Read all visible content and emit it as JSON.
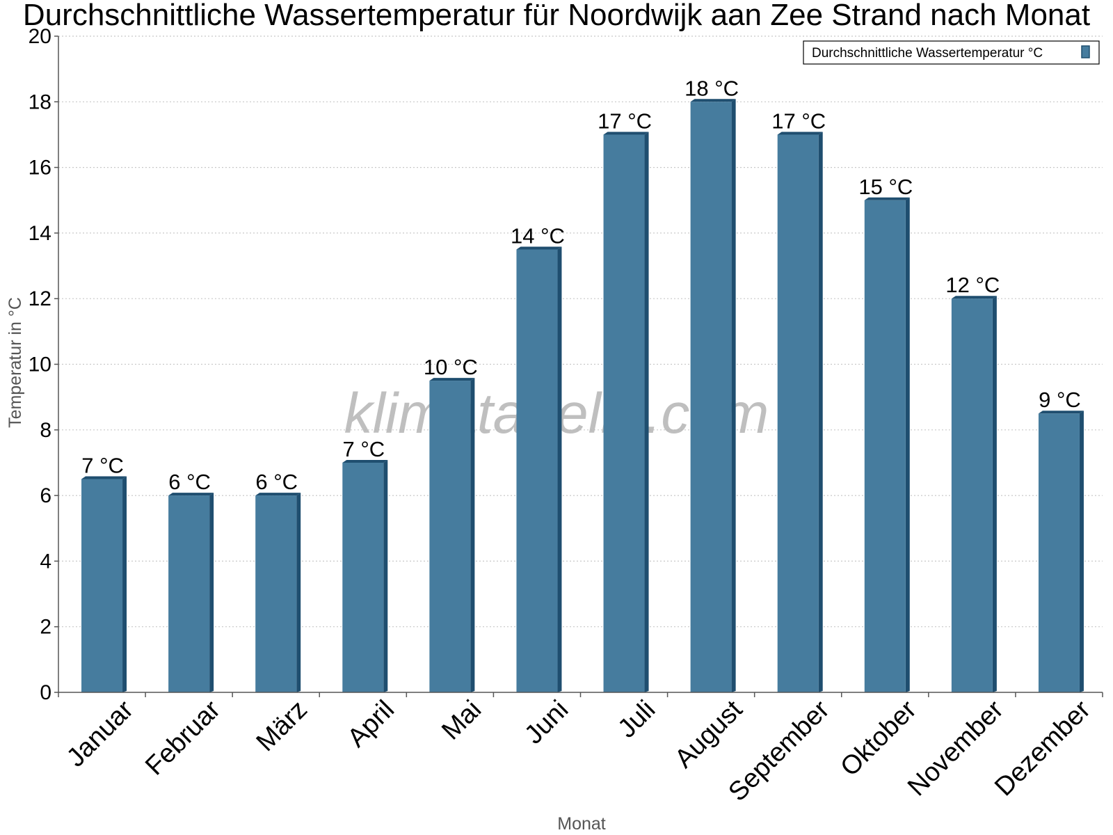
{
  "chart_data": {
    "type": "bar",
    "title": "Durchschnittliche Wassertemperatur für Noordwijk aan Zee Strand nach Monat",
    "xlabel": "Monat",
    "ylabel": "Temperatur in °C",
    "ylim": [
      0,
      20
    ],
    "yticks": [
      0,
      2,
      4,
      6,
      8,
      10,
      12,
      14,
      16,
      18,
      20
    ],
    "grid": true,
    "legend_position": "top-right",
    "categories": [
      "Januar",
      "Februar",
      "März",
      "April",
      "Mai",
      "Juni",
      "Juli",
      "August",
      "September",
      "Oktober",
      "November",
      "Dezember"
    ],
    "series": [
      {
        "name": "Durchschnittliche Wassertemperatur °C",
        "values": [
          6.5,
          6,
          6,
          7,
          9.5,
          13.5,
          17,
          18,
          17,
          15,
          12,
          8.5
        ],
        "data_labels": [
          "7 °C",
          "6 °C",
          "6 °C",
          "7 °C",
          "10 °C",
          "14 °C",
          "17 °C",
          "18 °C",
          "17 °C",
          "15 °C",
          "12 °C",
          "9 °C"
        ]
      }
    ]
  },
  "watermark": "klimatabelle.com",
  "colors": {
    "bar_face": "#467C9E",
    "bar_side": "#1F4E6F",
    "grid": "#c8c8c8",
    "axis": "#555555"
  }
}
